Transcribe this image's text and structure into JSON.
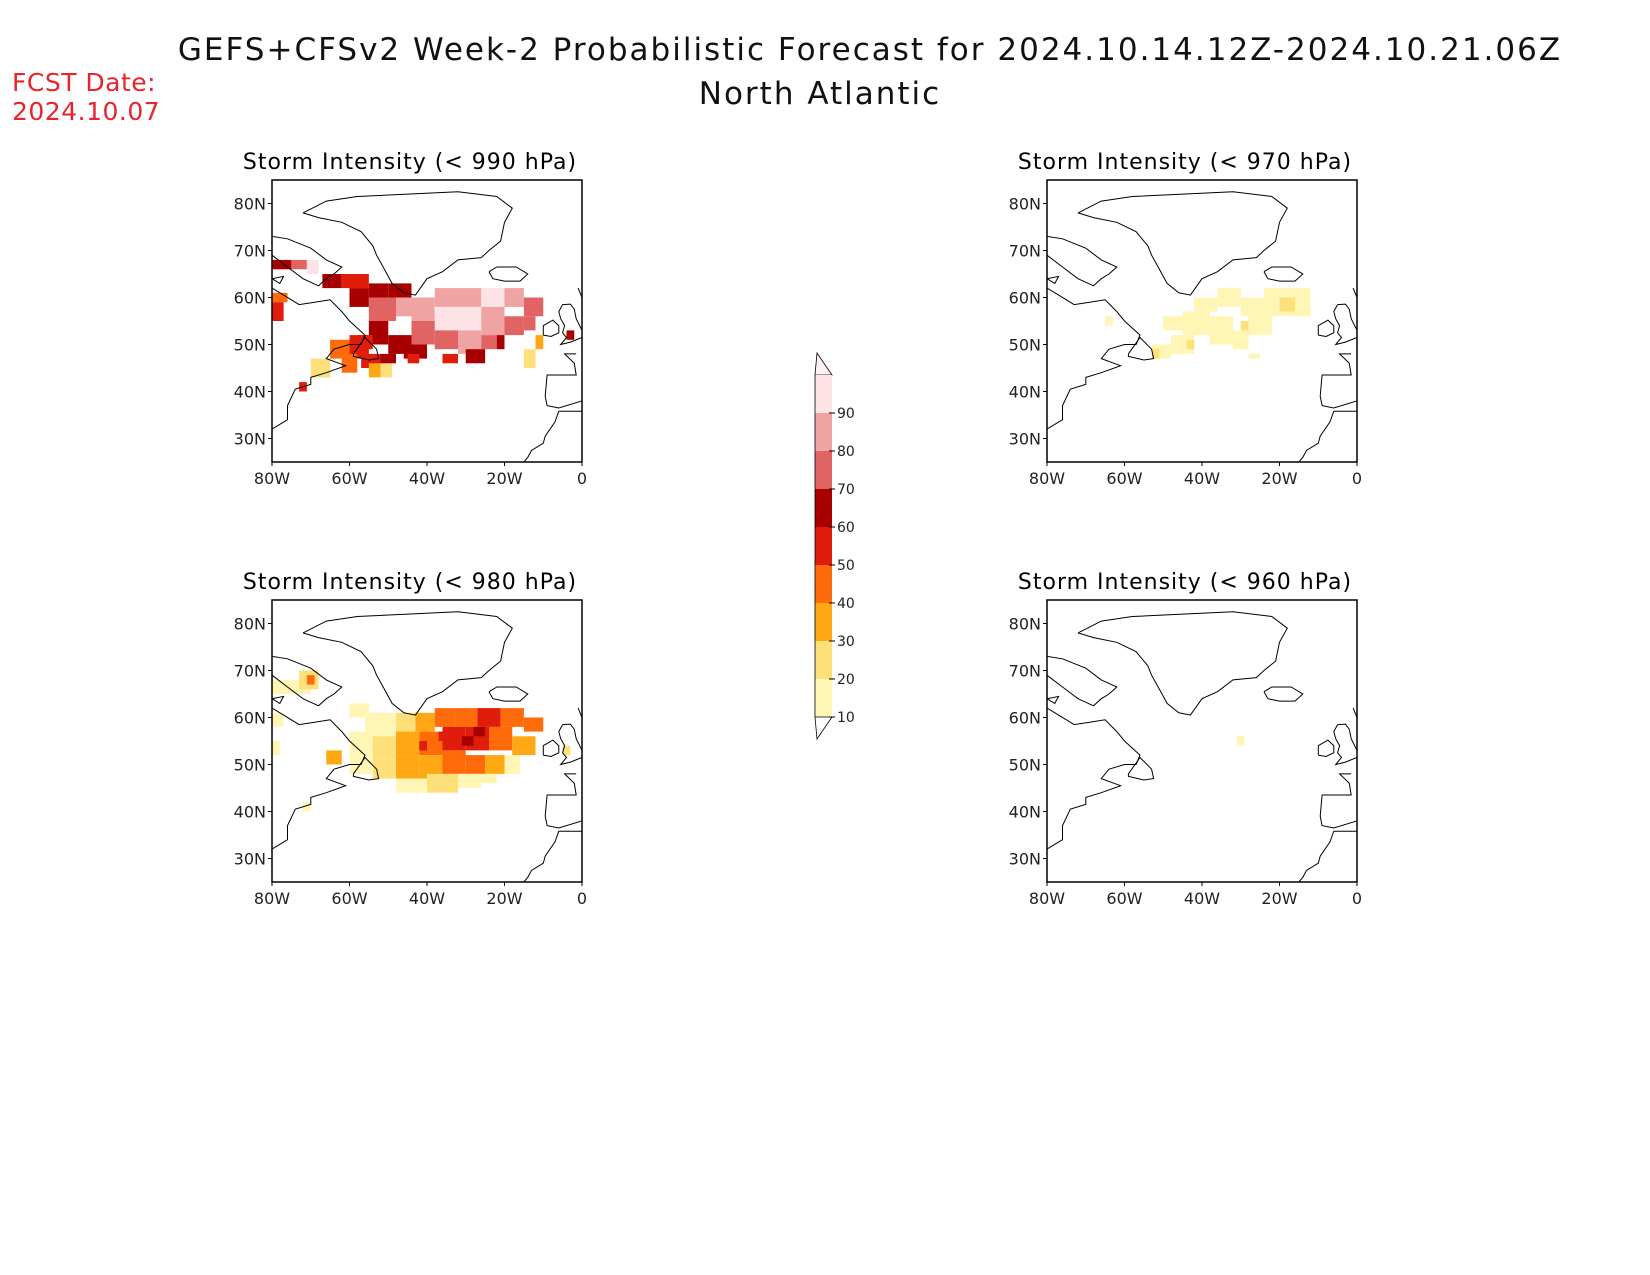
{
  "header": {
    "title": "GEFS+CFSv2 Week-2 Probabilistic Forecast for 2024.10.14.12Z-2024.10.21.06Z",
    "subtitle": "North Atlantic",
    "fcst_label": "FCST Date:",
    "fcst_date": "2024.10.07"
  },
  "axes": {
    "lon_labels": [
      "80W",
      "60W",
      "40W",
      "20W",
      "0"
    ],
    "lat_labels": [
      "80N",
      "70N",
      "60N",
      "50N",
      "40N",
      "30N"
    ],
    "lon_values": [
      -80,
      -60,
      -40,
      -20,
      0
    ],
    "lat_values": [
      80,
      70,
      60,
      50,
      40,
      30
    ],
    "lon_range": [
      -80,
      0
    ],
    "lat_range": [
      25,
      85
    ]
  },
  "colorbar": {
    "levels": [
      10,
      20,
      30,
      40,
      50,
      60,
      70,
      80,
      90
    ],
    "labels": [
      "10",
      "20",
      "30",
      "40",
      "50",
      "60",
      "70",
      "80",
      "90"
    ],
    "colors": [
      "#fff5b4",
      "#fde07a",
      "#ffa814",
      "#ff6a0a",
      "#e01c0a",
      "#a80000",
      "#e06464",
      "#f0a3a3",
      "#fde2e6"
    ]
  },
  "panels": [
    {
      "title": "Storm Intensity (< 990 hPa)",
      "threshold_hpa": 990,
      "cells": [
        [
          -80,
          66,
          -75,
          68,
          60
        ],
        [
          -75,
          66,
          -71,
          68,
          70
        ],
        [
          -71,
          65,
          -68,
          68,
          90
        ],
        [
          -80,
          59,
          -76,
          61,
          40
        ],
        [
          -80,
          55,
          -77,
          59,
          50
        ],
        [
          -67,
          62,
          -62,
          65,
          60
        ],
        [
          -62,
          62,
          -55,
          65,
          50
        ],
        [
          -55,
          60,
          -50,
          63,
          60
        ],
        [
          -50,
          60,
          -44,
          63,
          60
        ],
        [
          -60,
          58,
          -55,
          62,
          60
        ],
        [
          -55,
          55,
          -48,
          60,
          70
        ],
        [
          -48,
          56,
          -44,
          60,
          80
        ],
        [
          -44,
          55,
          -38,
          60,
          80
        ],
        [
          -38,
          58,
          -32,
          62,
          80
        ],
        [
          -32,
          58,
          -26,
          62,
          80
        ],
        [
          -26,
          58,
          -20,
          62,
          90
        ],
        [
          -20,
          58,
          -15,
          62,
          80
        ],
        [
          -15,
          56,
          -10,
          60,
          70
        ],
        [
          -38,
          52,
          -32,
          58,
          90
        ],
        [
          -32,
          53,
          -26,
          58,
          90
        ],
        [
          -26,
          52,
          -20,
          58,
          80
        ],
        [
          -20,
          52,
          -15,
          56,
          70
        ],
        [
          -15,
          53,
          -12,
          56,
          70
        ],
        [
          -44,
          50,
          -38,
          55,
          70
        ],
        [
          -38,
          49,
          -32,
          53,
          70
        ],
        [
          -32,
          48,
          -26,
          53,
          80
        ],
        [
          -26,
          49,
          -22,
          52,
          70
        ],
        [
          -22,
          49,
          -20,
          52,
          60
        ],
        [
          -55,
          50,
          -50,
          55,
          60
        ],
        [
          -50,
          48,
          -44,
          52,
          60
        ],
        [
          -60,
          47,
          -55,
          52,
          50
        ],
        [
          -57,
          45,
          -52,
          48,
          50
        ],
        [
          -55,
          43,
          -52,
          46,
          30
        ],
        [
          -52,
          43,
          -49,
          46,
          20
        ],
        [
          -65,
          47,
          -60,
          51,
          40
        ],
        [
          -70,
          43,
          -65,
          47,
          20
        ],
        [
          -73,
          40,
          -71,
          42,
          50
        ],
        [
          -62,
          44,
          -58,
          48,
          40
        ],
        [
          -58,
          49,
          -54,
          52,
          50
        ],
        [
          -46,
          47,
          -40,
          50,
          60
        ],
        [
          -36,
          46,
          -32,
          48,
          50
        ],
        [
          -30,
          46,
          -25,
          49,
          60
        ],
        [
          -15,
          45,
          -12,
          49,
          20
        ],
        [
          -12,
          49,
          -10,
          52,
          30
        ],
        [
          -4,
          51,
          -2,
          53,
          60
        ],
        [
          -45,
          46,
          -42,
          48,
          50
        ],
        [
          -52,
          46,
          -48,
          48,
          60
        ]
      ]
    },
    {
      "title": "Storm Intensity (< 970 hPa)",
      "threshold_hpa": 970,
      "cells": [
        [
          -53,
          47,
          -48,
          50,
          10
        ],
        [
          -48,
          48,
          -42,
          52,
          10
        ],
        [
          -45,
          52,
          -38,
          57,
          10
        ],
        [
          -38,
          50,
          -32,
          56,
          10
        ],
        [
          -32,
          49,
          -28,
          53,
          10
        ],
        [
          -28,
          52,
          -22,
          57,
          10
        ],
        [
          -30,
          56,
          -24,
          60,
          10
        ],
        [
          -24,
          56,
          -18,
          62,
          10
        ],
        [
          -18,
          56,
          -12,
          62,
          10
        ],
        [
          -42,
          57,
          -36,
          60,
          10
        ],
        [
          -36,
          58,
          -30,
          62,
          10
        ],
        [
          -50,
          53,
          -44,
          56,
          10
        ],
        [
          -30,
          53,
          -28,
          55,
          20
        ],
        [
          -20,
          57,
          -16,
          60,
          20
        ],
        [
          -44,
          49,
          -42,
          51,
          20
        ],
        [
          -53,
          47,
          -51,
          49,
          20
        ],
        [
          -65,
          54,
          -63,
          56,
          10
        ],
        [
          -28,
          47,
          -25,
          48,
          10
        ]
      ]
    },
    {
      "title": "Storm Intensity (< 980 hPa)",
      "threshold_hpa": 980,
      "cells": [
        [
          -80,
          65,
          -70,
          68,
          10
        ],
        [
          -73,
          66,
          -68,
          70,
          20
        ],
        [
          -71,
          67,
          -69,
          69,
          40
        ],
        [
          -80,
          58,
          -77,
          61,
          10
        ],
        [
          -80,
          52,
          -78,
          55,
          10
        ],
        [
          -60,
          60,
          -55,
          63,
          10
        ],
        [
          -56,
          56,
          -48,
          61,
          10
        ],
        [
          -48,
          56,
          -43,
          61,
          20
        ],
        [
          -43,
          57,
          -38,
          61,
          30
        ],
        [
          -38,
          58,
          -33,
          62,
          40
        ],
        [
          -33,
          58,
          -27,
          62,
          40
        ],
        [
          -27,
          58,
          -21,
          62,
          50
        ],
        [
          -21,
          58,
          -15,
          62,
          40
        ],
        [
          -15,
          57,
          -10,
          60,
          40
        ],
        [
          -60,
          52,
          -54,
          57,
          10
        ],
        [
          -54,
          51,
          -48,
          56,
          20
        ],
        [
          -48,
          52,
          -42,
          57,
          30
        ],
        [
          -42,
          52,
          -36,
          57,
          40
        ],
        [
          -36,
          53,
          -30,
          58,
          50
        ],
        [
          -30,
          53,
          -24,
          58,
          50
        ],
        [
          -24,
          53,
          -18,
          58,
          40
        ],
        [
          -18,
          52,
          -12,
          56,
          30
        ],
        [
          -60,
          48,
          -54,
          52,
          10
        ],
        [
          -54,
          47,
          -48,
          51,
          20
        ],
        [
          -48,
          47,
          -42,
          52,
          30
        ],
        [
          -42,
          47,
          -36,
          52,
          30
        ],
        [
          -36,
          48,
          -30,
          53,
          40
        ],
        [
          -30,
          48,
          -25,
          52,
          40
        ],
        [
          -25,
          48,
          -20,
          52,
          30
        ],
        [
          -20,
          48,
          -16,
          52,
          10
        ],
        [
          -48,
          44,
          -40,
          47,
          10
        ],
        [
          -40,
          44,
          -32,
          48,
          20
        ],
        [
          -32,
          45,
          -26,
          48,
          10
        ],
        [
          -26,
          46,
          -22,
          48,
          10
        ],
        [
          -66,
          50,
          -62,
          53,
          30
        ],
        [
          -72,
          40,
          -70,
          42,
          10
        ],
        [
          -31,
          54,
          -28,
          56,
          60
        ],
        [
          -37,
          55,
          -34,
          57,
          50
        ],
        [
          -28,
          56,
          -25,
          58,
          60
        ],
        [
          -42,
          53,
          -40,
          55,
          50
        ],
        [
          -5,
          52,
          -3,
          54,
          20
        ]
      ]
    },
    {
      "title": "Storm Intensity (< 960 hPa)",
      "threshold_hpa": 960,
      "cells": [
        [
          -31,
          54,
          -29,
          56,
          10
        ]
      ]
    }
  ]
}
